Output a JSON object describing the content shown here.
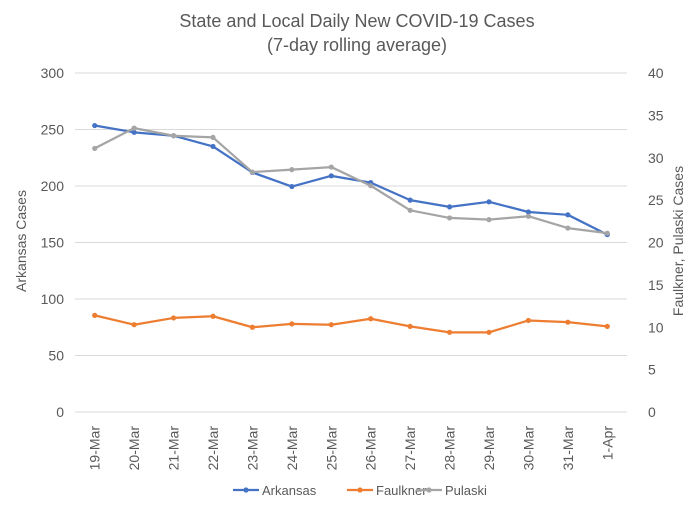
{
  "chart_data": {
    "type": "line",
    "title": "State and Local Daily New COVID-19 Cases",
    "subtitle": "(7-day rolling average)",
    "categories": [
      "19-Mar",
      "20-Mar",
      "21-Mar",
      "22-Mar",
      "23-Mar",
      "24-Mar",
      "25-Mar",
      "26-Mar",
      "27-Mar",
      "28-Mar",
      "29-Mar",
      "30-Mar",
      "31-Mar",
      "1-Apr"
    ],
    "ylabel": "Arkansas Cases",
    "y2label": "Faulkner, Pulaski Cases",
    "ylim": [
      0,
      300
    ],
    "y2lim": [
      0,
      40
    ],
    "yticks": [
      "0",
      "50",
      "100",
      "150",
      "200",
      "250",
      "300"
    ],
    "y2ticks": [
      "0",
      "5",
      "10",
      "15",
      "20",
      "25",
      "30",
      "35",
      "40"
    ],
    "grid": true,
    "legend_position": "bottom",
    "series": [
      {
        "name": "Arkansas",
        "axis": "left",
        "color": "#4472c4",
        "values": [
          253.5,
          247.5,
          244.5,
          235,
          212,
          199.5,
          209,
          203,
          187.5,
          181.5,
          186,
          177,
          174.5,
          157
        ]
      },
      {
        "name": "Faulkner",
        "axis": "right",
        "color": "#ed7d31",
        "values": [
          11.4,
          10.3,
          11.1,
          11.3,
          10.0,
          10.4,
          10.3,
          11.0,
          10.1,
          9.4,
          9.4,
          10.8,
          10.6,
          10.1
        ]
      },
      {
        "name": "Pulaski",
        "axis": "right",
        "color": "#a5a5a5",
        "values": [
          31.1,
          33.5,
          32.6,
          32.4,
          28.3,
          28.6,
          28.9,
          26.7,
          23.8,
          22.9,
          22.7,
          23.1,
          21.7,
          21.1
        ]
      }
    ]
  }
}
